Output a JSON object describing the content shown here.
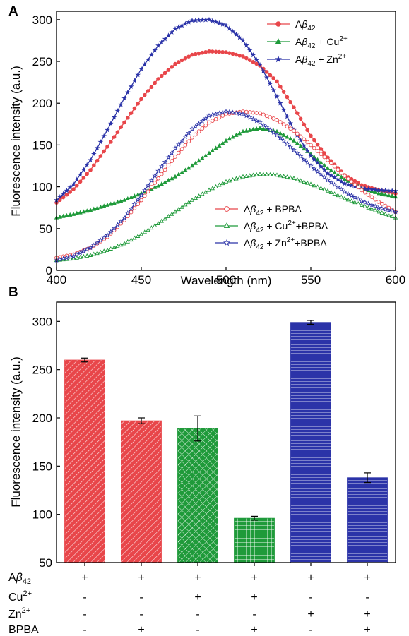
{
  "chart_data": [
    {
      "panel": "A",
      "type": "line",
      "xlabel": "Wavelength (nm)",
      "ylabel": "Fluorescence intensity (a.u.)",
      "xlim": [
        400,
        600
      ],
      "ylim": [
        0,
        310
      ],
      "xticks": [
        400,
        450,
        500,
        550,
        600
      ],
      "yticks": [
        0,
        50,
        100,
        150,
        200,
        250,
        300
      ],
      "grid": false,
      "legends": [
        {
          "placement": "top-right",
          "series": [
            0,
            1,
            2
          ]
        },
        {
          "placement": "bottom-right",
          "series": [
            3,
            4,
            5
          ]
        }
      ],
      "series": [
        {
          "name": "Aβ42",
          "legend": {
            "base": "A",
            "greek": "β",
            "sub": "42",
            "suffix": "",
            "ion": "",
            "sup": "",
            "tail": ""
          },
          "color": "#e8464a",
          "marker": "circle-filled",
          "peak_x": 497,
          "peak_y": 262,
          "start_y": 81,
          "end_y": 92,
          "points": [
            [
              400,
              81
            ],
            [
              410,
              97
            ],
            [
              420,
              120
            ],
            [
              430,
              148
            ],
            [
              440,
              177
            ],
            [
              450,
              205
            ],
            [
              460,
              229
            ],
            [
              470,
              247
            ],
            [
              480,
              258
            ],
            [
              490,
              262
            ],
            [
              500,
              261
            ],
            [
              510,
              256
            ],
            [
              520,
              245
            ],
            [
              530,
              226
            ],
            [
              540,
              195
            ],
            [
              550,
              161
            ],
            [
              560,
              135
            ],
            [
              570,
              114
            ],
            [
              580,
              102
            ],
            [
              590,
              96
            ],
            [
              600,
              92
            ]
          ]
        },
        {
          "name": "Aβ42 + Cu2+",
          "legend": {
            "base": "A",
            "greek": "β",
            "sub": "42",
            "suffix": " + Cu",
            "ion": "",
            "sup": "2+",
            "tail": ""
          },
          "color": "#1f9a3a",
          "marker": "triangle-filled",
          "peak_x": 518,
          "peak_y": 170,
          "start_y": 63,
          "end_y": 88,
          "points": [
            [
              400,
              63
            ],
            [
              410,
              67
            ],
            [
              420,
              72
            ],
            [
              430,
              78
            ],
            [
              440,
              84
            ],
            [
              450,
              92
            ],
            [
              460,
              101
            ],
            [
              470,
              112
            ],
            [
              480,
              125
            ],
            [
              490,
              140
            ],
            [
              500,
              155
            ],
            [
              510,
              166
            ],
            [
              520,
              170
            ],
            [
              530,
              166
            ],
            [
              540,
              155
            ],
            [
              550,
              139
            ],
            [
              560,
              122
            ],
            [
              570,
              109
            ],
            [
              580,
              98
            ],
            [
              590,
              92
            ],
            [
              600,
              88
            ]
          ]
        },
        {
          "name": "Aβ42 + Zn2+",
          "legend": {
            "base": "A",
            "greek": "β",
            "sub": "42",
            "suffix": " + Zn",
            "ion": "",
            "sup": "2+",
            "tail": ""
          },
          "color": "#2b33a8",
          "marker": "star",
          "peak_x": 487,
          "peak_y": 300,
          "start_y": 84,
          "end_y": 95,
          "points": [
            [
              400,
              84
            ],
            [
              410,
              103
            ],
            [
              420,
              132
            ],
            [
              430,
              168
            ],
            [
              440,
              206
            ],
            [
              450,
              241
            ],
            [
              460,
              269
            ],
            [
              470,
              289
            ],
            [
              480,
              299
            ],
            [
              490,
              300
            ],
            [
              500,
              293
            ],
            [
              510,
              275
            ],
            [
              520,
              246
            ],
            [
              530,
              208
            ],
            [
              540,
              168
            ],
            [
              550,
              137
            ],
            [
              560,
              116
            ],
            [
              570,
              104
            ],
            [
              580,
              98
            ],
            [
              590,
              96
            ],
            [
              600,
              95
            ]
          ]
        },
        {
          "name": "Aβ42 + BPBA",
          "legend": {
            "base": "A",
            "greek": "β",
            "sub": "42",
            "suffix": " + BPBA",
            "ion": "",
            "sup": "",
            "tail": ""
          },
          "color": "#e8464a",
          "marker": "circle-open",
          "peak_x": 515,
          "peak_y": 190,
          "start_y": 15,
          "end_y": 70,
          "points": [
            [
              400,
              15
            ],
            [
              410,
              19
            ],
            [
              420,
              27
            ],
            [
              430,
              40
            ],
            [
              440,
              60
            ],
            [
              450,
              84
            ],
            [
              460,
              110
            ],
            [
              470,
              136
            ],
            [
              480,
              159
            ],
            [
              490,
              177
            ],
            [
              500,
              187
            ],
            [
              510,
              190
            ],
            [
              520,
              188
            ],
            [
              530,
              180
            ],
            [
              540,
              167
            ],
            [
              550,
              150
            ],
            [
              560,
              132
            ],
            [
              570,
              113
            ],
            [
              580,
              96
            ],
            [
              590,
              82
            ],
            [
              600,
              70
            ]
          ]
        },
        {
          "name": "Aβ42 + Cu2++BPBA",
          "legend": {
            "base": "A",
            "greek": "β",
            "sub": "42",
            "suffix": " + Cu",
            "ion": "",
            "sup": "2+",
            "tail": "+BPBA"
          },
          "color": "#1f9a3a",
          "marker": "triangle-open",
          "peak_x": 522,
          "peak_y": 115,
          "start_y": 12,
          "end_y": 63,
          "points": [
            [
              400,
              12
            ],
            [
              410,
              14
            ],
            [
              420,
              18
            ],
            [
              430,
              24
            ],
            [
              440,
              32
            ],
            [
              450,
              43
            ],
            [
              460,
              56
            ],
            [
              470,
              70
            ],
            [
              480,
              84
            ],
            [
              490,
              96
            ],
            [
              500,
              106
            ],
            [
              510,
              112
            ],
            [
              520,
              115
            ],
            [
              530,
              114
            ],
            [
              540,
              110
            ],
            [
              550,
              103
            ],
            [
              560,
              95
            ],
            [
              570,
              86
            ],
            [
              580,
              78
            ],
            [
              590,
              70
            ],
            [
              600,
              63
            ]
          ]
        },
        {
          "name": "Aβ42 + Zn2++BPBA",
          "legend": {
            "base": "A",
            "greek": "β",
            "sub": "42",
            "suffix": " + Zn",
            "ion": "",
            "sup": "2+",
            "tail": "+BPBA"
          },
          "color": "#2b33a8",
          "marker": "star-open",
          "peak_x": 500,
          "peak_y": 190,
          "start_y": 12,
          "end_y": 70,
          "points": [
            [
              400,
              12
            ],
            [
              410,
              17
            ],
            [
              420,
              27
            ],
            [
              430,
              42
            ],
            [
              440,
              63
            ],
            [
              450,
              90
            ],
            [
              460,
              119
            ],
            [
              470,
              146
            ],
            [
              480,
              169
            ],
            [
              490,
              185
            ],
            [
              500,
              190
            ],
            [
              510,
              187
            ],
            [
              520,
              177
            ],
            [
              530,
              162
            ],
            [
              540,
              144
            ],
            [
              550,
              125
            ],
            [
              560,
              108
            ],
            [
              570,
              94
            ],
            [
              580,
              83
            ],
            [
              590,
              75
            ],
            [
              600,
              70
            ]
          ]
        }
      ]
    },
    {
      "panel": "B",
      "type": "bar",
      "ylabel": "Fluorescence intensity (a.u.)",
      "ylim": [
        50,
        320
      ],
      "yticks": [
        50,
        100,
        150,
        200,
        250,
        300
      ],
      "grid": false,
      "bars": [
        {
          "value": 260,
          "error": 2,
          "color": "#e8464a",
          "pattern": "diagonal"
        },
        {
          "value": 197,
          "error": 3,
          "color": "#e8464a",
          "pattern": "diagonal"
        },
        {
          "value": 189,
          "error": 13,
          "color": "#1f9a3a",
          "pattern": "crosshatch"
        },
        {
          "value": 96,
          "error": 2,
          "color": "#1f9a3a",
          "pattern": "grid"
        },
        {
          "value": 299,
          "error": 2,
          "color": "#2b33a8",
          "pattern": "horizontal"
        },
        {
          "value": 138,
          "error": 5,
          "color": "#2b33a8",
          "pattern": "horizontal"
        }
      ],
      "table": {
        "rows": [
          {
            "label": {
              "base": "A",
              "greek": "β",
              "sub": "42",
              "sup": ""
            },
            "values": [
              "+",
              "+",
              "+",
              "+",
              "+",
              "+"
            ]
          },
          {
            "label": {
              "base": "Cu",
              "greek": "",
              "sub": "",
              "sup": "2+"
            },
            "values": [
              "-",
              "-",
              "+",
              "+",
              "-",
              "-"
            ]
          },
          {
            "label": {
              "base": "Zn",
              "greek": "",
              "sub": "",
              "sup": "2+"
            },
            "values": [
              "-",
              "-",
              "-",
              "-",
              "+",
              "+"
            ]
          },
          {
            "label": {
              "base": "BPBA",
              "greek": "",
              "sub": "",
              "sup": ""
            },
            "values": [
              "-",
              "+",
              "-",
              "+",
              "-",
              "+"
            ]
          }
        ]
      }
    }
  ],
  "panel_labels": {
    "a": "A",
    "b": "B"
  }
}
